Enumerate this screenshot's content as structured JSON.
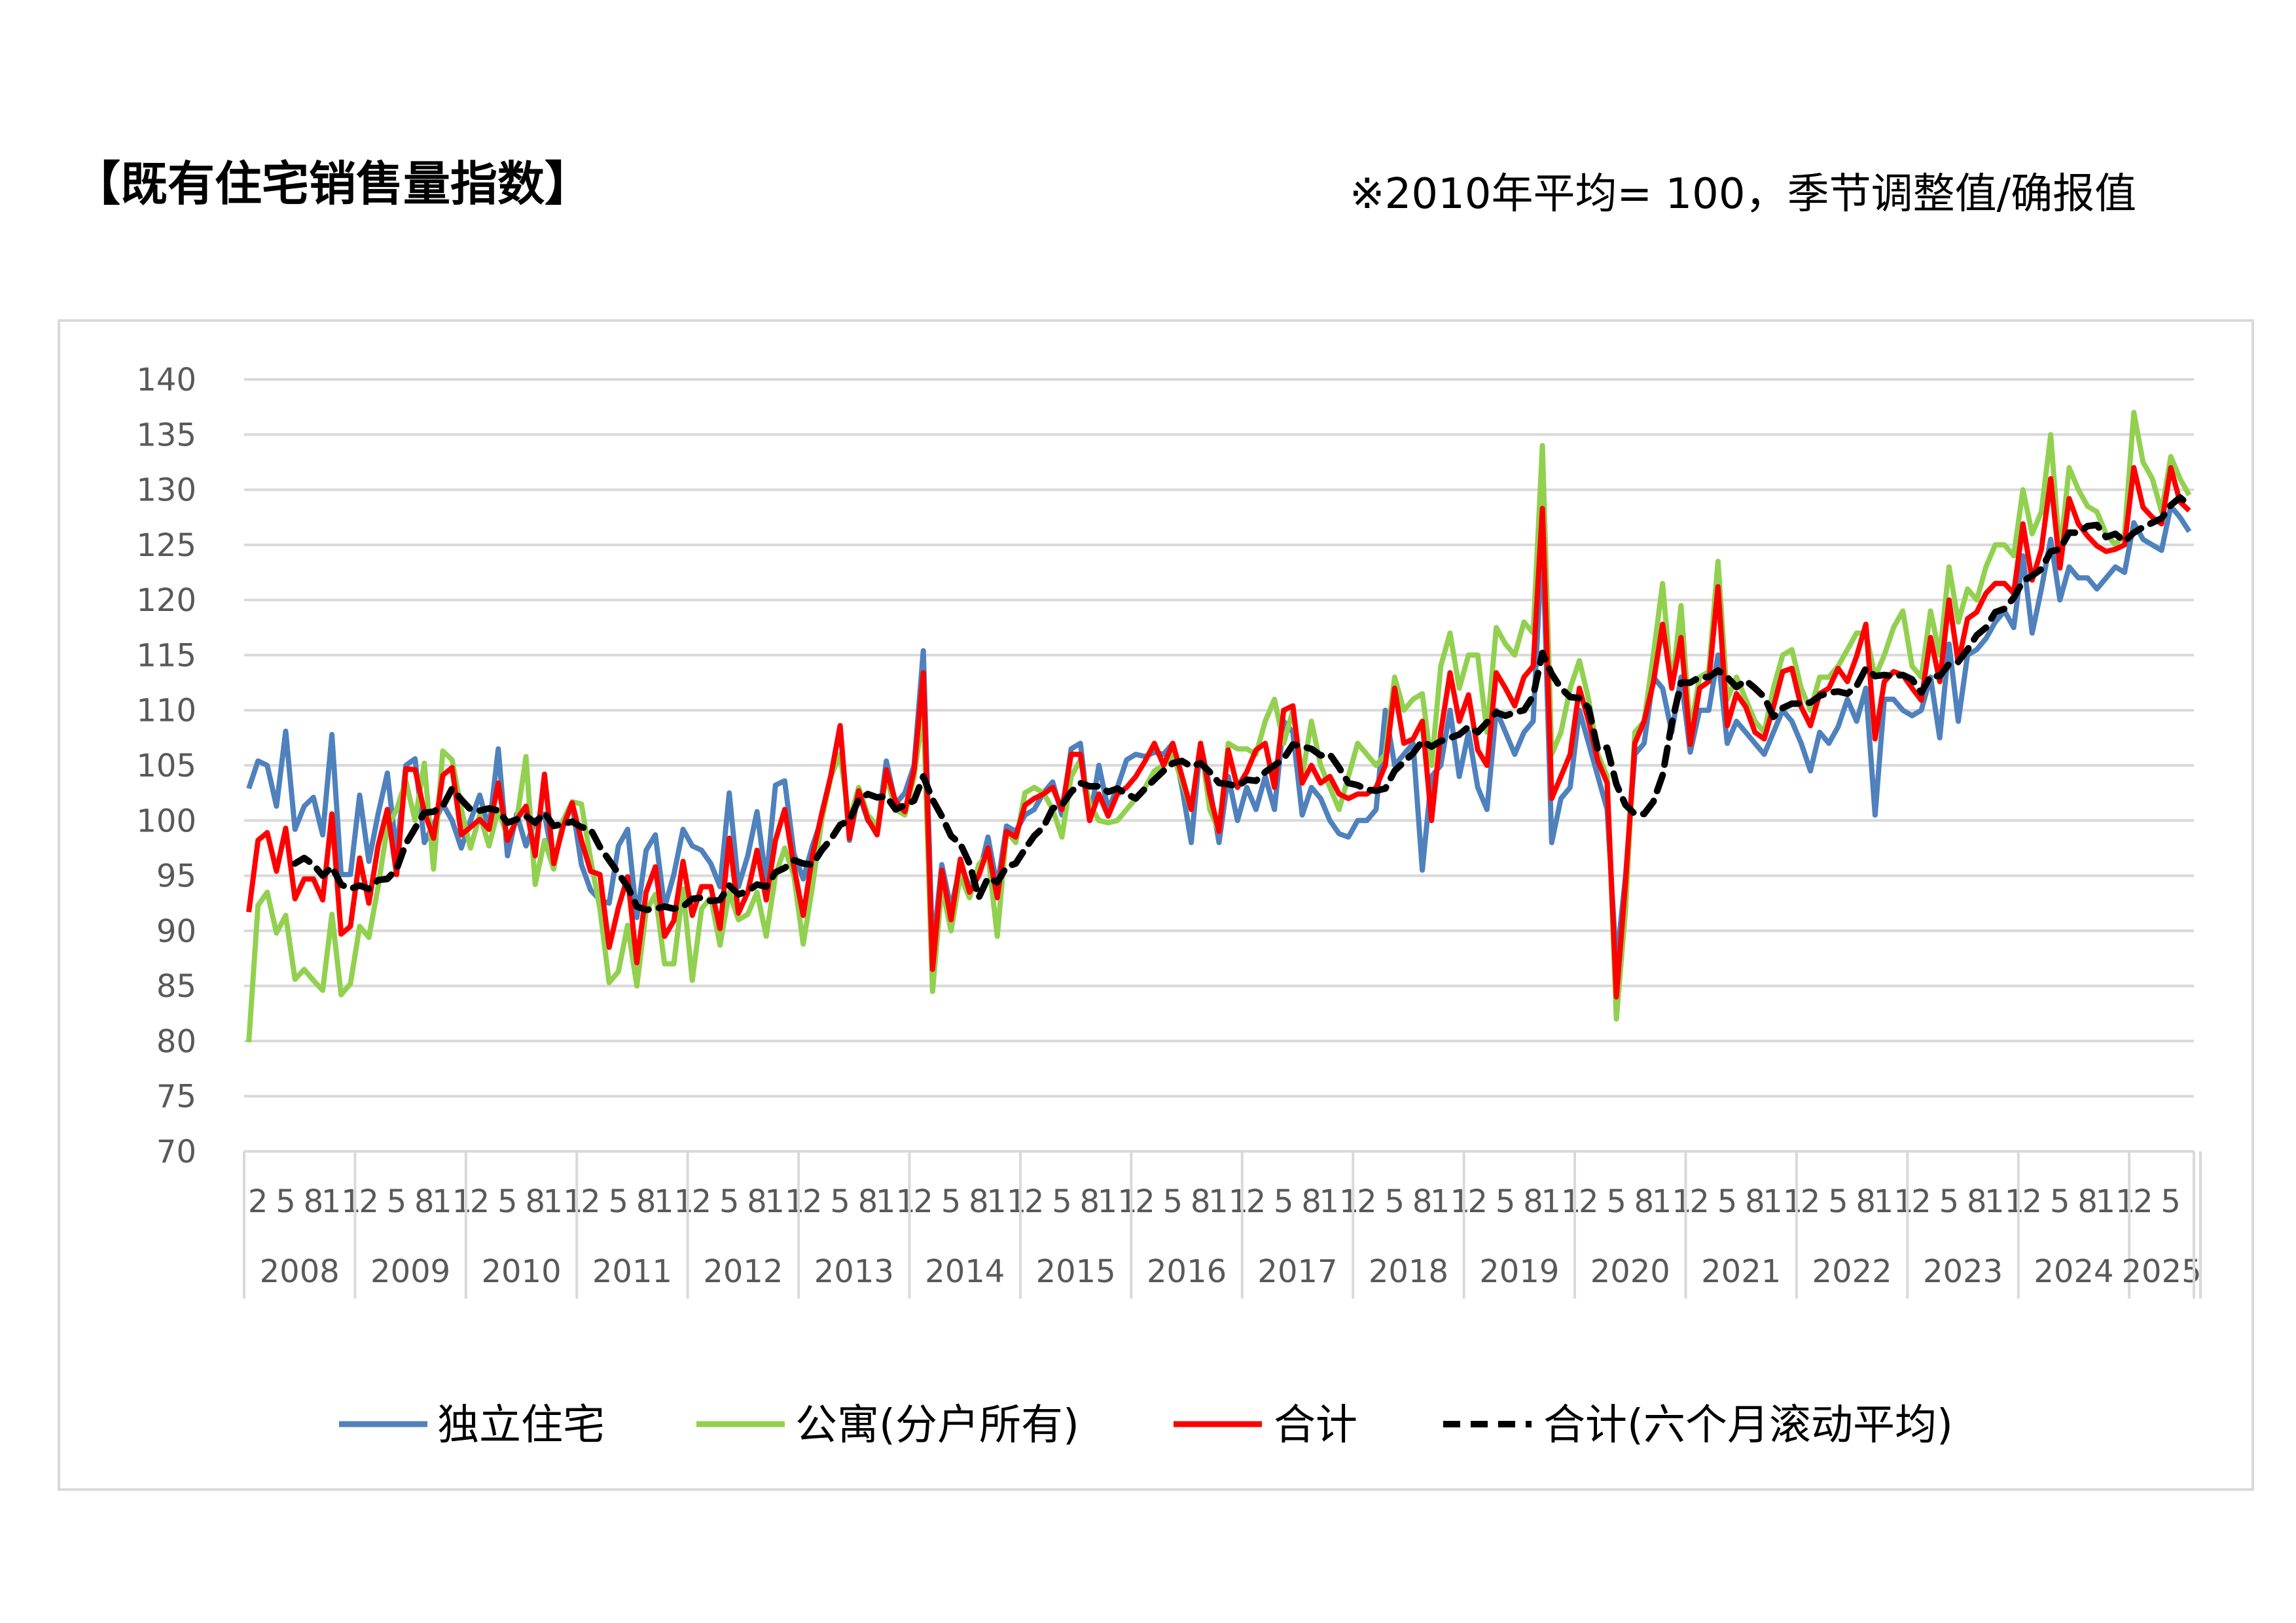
{
  "title": "【既有住宅销售量指数】",
  "note": "※2010年平均= 100，季节调整值/确报值",
  "chart_data": {
    "type": "line",
    "title": "既有住宅销售量指数",
    "x_range": [
      "2008-01",
      "2025-07"
    ],
    "years": [
      "2008",
      "2009",
      "2010",
      "2011",
      "2012",
      "2013",
      "2014",
      "2015",
      "2016",
      "2017",
      "2018",
      "2019",
      "2020",
      "2021",
      "2022",
      "2023",
      "2024",
      "2025"
    ],
    "month_ticks": [
      "2",
      "5",
      "8",
      "11"
    ],
    "ylim": [
      70,
      140
    ],
    "yticks": [
      "70",
      "75",
      "80",
      "85",
      "90",
      "95",
      "100",
      "105",
      "110",
      "115",
      "120",
      "125",
      "130",
      "135",
      "140"
    ],
    "grid": true,
    "legend_position": "bottom",
    "colors": {
      "detached": "#4f81bd",
      "condo": "#92d050",
      "total": "#ff0000",
      "ma": "#000000"
    },
    "series": [
      {
        "name": "独立住宅",
        "key": "detached",
        "values": [
          102.9,
          105.4,
          105,
          101.3,
          108.1,
          99.2,
          101.3,
          102.1,
          98.7,
          107.8,
          95.1,
          95.1,
          102.3,
          96.3,
          100.6,
          104.3,
          97,
          105,
          105.6,
          98,
          99.6,
          101.5,
          100,
          97.5,
          100,
          102.3,
          99.2,
          106.5,
          96.8,
          100.6,
          97.7,
          100,
          100.6,
          96.1,
          99.4,
          101.5,
          96,
          93.7,
          92.8,
          92.5,
          97.7,
          99.2,
          91.2,
          97.3,
          98.7,
          92.1,
          95.1,
          99.2,
          97.7,
          97.3,
          96.1,
          94,
          102.5,
          94,
          96.8,
          100.8,
          94.5,
          103.2,
          103.6,
          97,
          94.7,
          97.7,
          100.1,
          104,
          108.6,
          98.2,
          102.5,
          100,
          99,
          105.4,
          101.5,
          102.5,
          105,
          115.4,
          88,
          96,
          92,
          96,
          94,
          95,
          98.5,
          94,
          99.5,
          99,
          100.5,
          101,
          102.5,
          103.5,
          100.5,
          106.5,
          107,
          100,
          105,
          101,
          103,
          105.5,
          106,
          105.8,
          106.2,
          106,
          107,
          103,
          98,
          107,
          103,
          98,
          104,
          100,
          103,
          101,
          104,
          101,
          109,
          108,
          100.5,
          103,
          102,
          100,
          98.8,
          98.5,
          100,
          100,
          101,
          110,
          105,
          106,
          107,
          95.5,
          104,
          105,
          110,
          104,
          108,
          103,
          101,
          110,
          108,
          106,
          108,
          109,
          126,
          98,
          102,
          103,
          110,
          107,
          104,
          101,
          87,
          95,
          106,
          107,
          113,
          112,
          108,
          113,
          106.2,
          110,
          110,
          115,
          107,
          109,
          108,
          107,
          106,
          108,
          110,
          109,
          107,
          104.5,
          108,
          107,
          108.5,
          111,
          109,
          112,
          100.5,
          111,
          111,
          110,
          109.5,
          110,
          113,
          107.5,
          116,
          109,
          115,
          115.5,
          116.5,
          118,
          119,
          117.5,
          124,
          117,
          121,
          125.5,
          120,
          123,
          122,
          122,
          121,
          122,
          123,
          122.5,
          127,
          125.5,
          125,
          124.5,
          128.5,
          127.5,
          126.2
        ]
      },
      {
        "name": "公寓(分户所有)",
        "key": "condo",
        "values": [
          79.9,
          92.3,
          93.5,
          89.8,
          91.4,
          85.6,
          86.5,
          85.5,
          84.6,
          91.5,
          84.2,
          85.2,
          90.4,
          89.4,
          94,
          99.4,
          101,
          103.6,
          100,
          105.2,
          95.6,
          106.3,
          105.5,
          101,
          97.5,
          100.5,
          97.7,
          101,
          98.5,
          100,
          105.8,
          94.2,
          98.2,
          95.6,
          100,
          101.7,
          101.5,
          96.5,
          92,
          85.3,
          86.3,
          90.5,
          85,
          91.8,
          93.3,
          87,
          87,
          93.8,
          85.5,
          92,
          93,
          88.7,
          93.5,
          91,
          91.5,
          93.5,
          89.5,
          95,
          97.5,
          95,
          88.8,
          94,
          100,
          104,
          106,
          100,
          103,
          100.5,
          99.5,
          104,
          101,
          100.5,
          104,
          110,
          84.5,
          94,
          90,
          95,
          93,
          96,
          97,
          89.5,
          99,
          98,
          102.5,
          103,
          102.5,
          101,
          98.5,
          104,
          105.5,
          101.5,
          100,
          99.8,
          100,
          101,
          102,
          103,
          104.5,
          105,
          106,
          103.5,
          101,
          107,
          101,
          99,
          107,
          106.5,
          106.5,
          106,
          109,
          111,
          107,
          110,
          104,
          109,
          105,
          103,
          101,
          104,
          107,
          106,
          105,
          106,
          113,
          110,
          111,
          111.5,
          105,
          114,
          117,
          112,
          115,
          115,
          108,
          117.5,
          116,
          115,
          118,
          117,
          134,
          106,
          108,
          112,
          114.5,
          111,
          106,
          104,
          82,
          92,
          108,
          109,
          115,
          121.5,
          112,
          119.5,
          108,
          113,
          113.5,
          123.5,
          111,
          113,
          111,
          109,
          108,
          112,
          115,
          115.5,
          112,
          110,
          113,
          113,
          114,
          115.5,
          117,
          117,
          113,
          115,
          117.5,
          119,
          114,
          113,
          119,
          115,
          123,
          118,
          121,
          120,
          123,
          125,
          125,
          124,
          130,
          126,
          128,
          135,
          124,
          132,
          130,
          128.5,
          128,
          126,
          125,
          126,
          137,
          132.5,
          131,
          128,
          133,
          131,
          129.5
        ]
      },
      {
        "name": "合计",
        "key": "total",
        "values": [
          91.7,
          98.2,
          98.9,
          95.4,
          99.3,
          92.9,
          94.7,
          94.7,
          92.8,
          100.6,
          89.7,
          90.4,
          96.6,
          92.5,
          97.7,
          101,
          95.1,
          104.7,
          104.6,
          100.8,
          98.4,
          104.1,
          104.8,
          98.7,
          99.4,
          100.1,
          99.2,
          103.4,
          98.2,
          100.1,
          101.3,
          96.8,
          104.2,
          96.1,
          99.4,
          101.6,
          98.2,
          95.4,
          95.1,
          88.5,
          92.1,
          94.9,
          87.1,
          93.5,
          95.8,
          89.5,
          90.9,
          96.3,
          91.4,
          94,
          94,
          90.2,
          98.4,
          91.6,
          93.5,
          97.3,
          92.8,
          98.2,
          101,
          95.8,
          91.4,
          96.8,
          100.6,
          104.1,
          108.6,
          98.4,
          102.7,
          100.1,
          98.7,
          104.6,
          101.7,
          100.8,
          104.6,
          113.4,
          86.5,
          95.5,
          91,
          96.5,
          93.5,
          95,
          97.5,
          93,
          99,
          98.5,
          101.4,
          102,
          102.4,
          103,
          101,
          106,
          106,
          100,
          102.4,
          100.4,
          102.4,
          103,
          104,
          105.4,
          107,
          105,
          107,
          104,
          101,
          107,
          102.4,
          99,
          106.4,
          103,
          104.4,
          106.4,
          107,
          103,
          110,
          110.4,
          103.4,
          105,
          103.4,
          104,
          102.4,
          102,
          102.4,
          102.4,
          103,
          105,
          112,
          107,
          107.4,
          109,
          100,
          108,
          113.4,
          109,
          111.4,
          106.4,
          105,
          113.4,
          112,
          110.4,
          113,
          114,
          128.3,
          102,
          104,
          106,
          112,
          109,
          105.4,
          103.4,
          84,
          94.5,
          107,
          109,
          112.5,
          117.8,
          112,
          116.6,
          106.9,
          112,
          112.6,
          121.2,
          108.6,
          111.5,
          110.3,
          108,
          107.4,
          110.3,
          113.5,
          113.8,
          110.3,
          108.6,
          111.5,
          112,
          113.8,
          112.6,
          114.9,
          117.8,
          107.4,
          112.6,
          113.5,
          113.2,
          112,
          110.9,
          116.6,
          112.6,
          120,
          114.3,
          118.3,
          118.9,
          120.6,
          121.5,
          121.5,
          120.6,
          126.9,
          121.8,
          124.6,
          131,
          122.9,
          129.2,
          126.9,
          125.8,
          124.9,
          124.4,
          124.6,
          125,
          132,
          128.4,
          127.5,
          126.9,
          132,
          128.9,
          128.1
        ]
      },
      {
        "name": "合计(六个月滚动平均)",
        "key": "ma",
        "dashed": true,
        "values": [
          null,
          null,
          null,
          null,
          null,
          96.1,
          96.6,
          96.0,
          95.0,
          95.8,
          94.2,
          93.8,
          94.1,
          93.8,
          94.6,
          94.7,
          95.6,
          97.9,
          99.3,
          100.7,
          100.8,
          101.3,
          102.9,
          101.9,
          101.0,
          100.9,
          101.1,
          100.9,
          99.8,
          100.1,
          100.4,
          99.8,
          100.7,
          99.5,
          99.7,
          99.9,
          99.4,
          99.2,
          97.6,
          96.4,
          95.2,
          94.0,
          92.2,
          91.9,
          92.0,
          92.2,
          92.0,
          92.2,
          92.9,
          93.0,
          92.7,
          92.8,
          94.1,
          93.3,
          93.6,
          94.2,
          94.0,
          95.3,
          95.7,
          96.4,
          96.1,
          96.0,
          97.3,
          98.3,
          99.6,
          100.0,
          101.9,
          102.4,
          102.1,
          102.2,
          101.0,
          101.4,
          101.8,
          104.0,
          101.9,
          100.4,
          98.6,
          97.9,
          96.1,
          93.0,
          94.8,
          94.4,
          95.8,
          96.1,
          97.4,
          98.6,
          99.4,
          101.1,
          101.4,
          102.6,
          103.4,
          103.1,
          103.1,
          102.6,
          102.9,
          102.4,
          102.0,
          102.9,
          103.7,
          104.5,
          105.2,
          105.4,
          104.9,
          105.2,
          104.4,
          103.4,
          103.3,
          103.1,
          103.7,
          103.6,
          104.4,
          105.0,
          105.6,
          106.9,
          106.7,
          106.5,
          105.9,
          106.0,
          104.8,
          103.4,
          103.2,
          102.8,
          102.7,
          102.9,
          104.5,
          105.3,
          106.1,
          107.2,
          106.7,
          107.2,
          107.5,
          107.8,
          108.5,
          108.0,
          108.9,
          109.8,
          109.5,
          109.8,
          110.0,
          111.3,
          115.2,
          113.3,
          112.0,
          111.2,
          111.1,
          110.2,
          106.4,
          106.6,
          103.3,
          101.4,
          100.6,
          100.6,
          101.7,
          104.1,
          108.8,
          112.5,
          112.5,
          113.0,
          113.0,
          113.6,
          113.0,
          112.1,
          112.7,
          112.0,
          111.2,
          109.4,
          110.2,
          110.6,
          110.6,
          110.7,
          111.3,
          111.6,
          111.7,
          111.5,
          112.2,
          113.8,
          113.1,
          113.2,
          113.1,
          113.2,
          112.8,
          111.6,
          113.1,
          113.1,
          114.2,
          114.4,
          115.5,
          116.8,
          117.5,
          118.9,
          119.2,
          120.2,
          121.7,
          122.2,
          122.8,
          124.4,
          124.6,
          126.1,
          126.1,
          126.7,
          126.8,
          125.7,
          126.0,
          125.3,
          126.1,
          126.6,
          127.0,
          127.4,
          128.6,
          129.3,
          128.6
        ]
      }
    ]
  }
}
